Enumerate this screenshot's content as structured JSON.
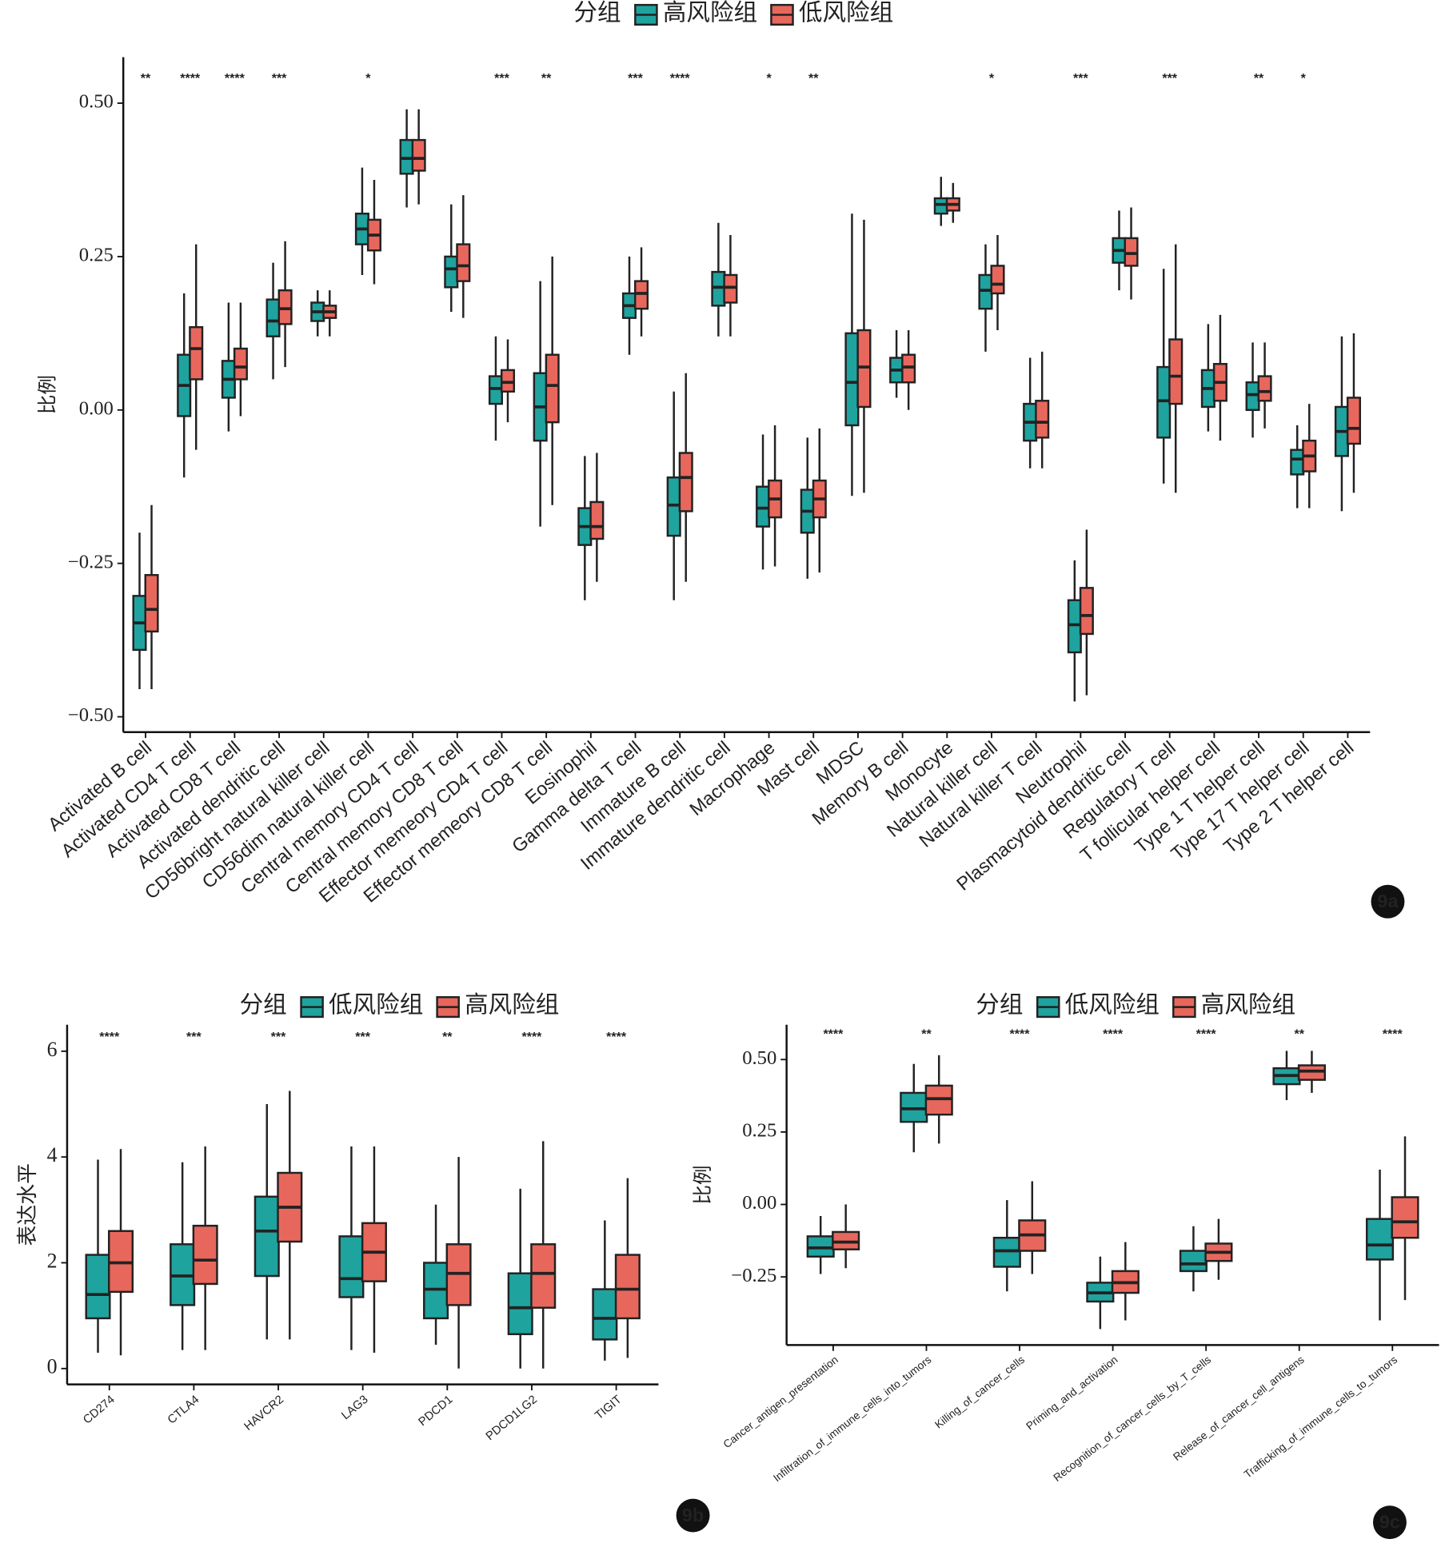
{
  "chart_data": [
    {
      "type": "box",
      "panel_label": "9a",
      "legend_title": "分组",
      "y_label": "比例",
      "ylim": [
        -0.525,
        0.575
      ],
      "yticks": [
        {
          "value": 0.5,
          "label": "0.50"
        },
        0.25,
        {
          "value": 0,
          "label": "0.00"
        },
        {
          "value": -0.25,
          "label": "−0.25"
        },
        {
          "value": -0.5,
          "label": "−0.50"
        }
      ],
      "categories": [
        "Activated B cell",
        "Activated CD4 T cell",
        "Activated CD8 T cell",
        "Activated dendritic cell",
        "CD56bright natural killer cell",
        "CD56dim natural killer cell",
        "Central memory CD4 T cell",
        "Central memory CD8 T cell",
        "Effector memeory CD4 T cell",
        "Effector memeory CD8 T cell",
        "Eosinophil",
        "Gamma delta T cell",
        "Immature  B cell",
        "Immature dendritic cell",
        "Macrophage",
        "Mast cell",
        "MDSC",
        "Memory B cell",
        "Monocyte",
        "Natural killer cell",
        "Natural killer T cell",
        "Neutrophil",
        "Plasmacytoid dendritic cell",
        "Regulatory T cell",
        "T follicular helper cell",
        "Type 1 T helper cell",
        "Type 17 T helper cell",
        "Type 2 T helper cell"
      ],
      "significance": [
        "**",
        "****",
        "****",
        "***",
        null,
        "*",
        null,
        null,
        "***",
        "**",
        null,
        "***",
        "****",
        null,
        "*",
        "**",
        null,
        null,
        null,
        "*",
        null,
        "***",
        null,
        "***",
        null,
        "**",
        "*",
        null
      ],
      "series": [
        {
          "name": "高风险组",
          "color": "#1fa39f",
          "values": [
            [
              -0.455,
              -0.391,
              -0.347,
              -0.303,
              -0.2
            ],
            [
              -0.11,
              -0.01,
              0.04,
              0.09,
              0.19
            ],
            [
              -0.035,
              0.02,
              0.05,
              0.08,
              0.175
            ],
            [
              0.05,
              0.12,
              0.145,
              0.18,
              0.24
            ],
            [
              0.12,
              0.145,
              0.16,
              0.175,
              0.195
            ],
            [
              0.22,
              0.27,
              0.295,
              0.32,
              0.395
            ],
            [
              0.33,
              0.385,
              0.41,
              0.44,
              0.49
            ],
            [
              0.16,
              0.2,
              0.23,
              0.25,
              0.335
            ],
            [
              -0.05,
              0.01,
              0.035,
              0.055,
              0.12
            ],
            [
              -0.19,
              -0.05,
              0.005,
              0.06,
              0.21
            ],
            [
              -0.31,
              -0.22,
              -0.19,
              -0.16,
              -0.075
            ],
            [
              0.09,
              0.15,
              0.17,
              0.19,
              0.25
            ],
            [
              -0.31,
              -0.205,
              -0.155,
              -0.11,
              0.03
            ],
            [
              0.12,
              0.17,
              0.2,
              0.225,
              0.305
            ],
            [
              -0.26,
              -0.19,
              -0.16,
              -0.125,
              -0.04
            ],
            [
              -0.275,
              -0.2,
              -0.165,
              -0.13,
              -0.045
            ],
            [
              -0.14,
              -0.025,
              0.045,
              0.125,
              0.32
            ],
            [
              0.02,
              0.045,
              0.065,
              0.085,
              0.13
            ],
            [
              0.3,
              0.32,
              0.335,
              0.345,
              0.38
            ],
            [
              0.095,
              0.165,
              0.195,
              0.22,
              0.27
            ],
            [
              -0.095,
              -0.05,
              -0.02,
              0.01,
              0.085
            ],
            [
              -0.475,
              -0.395,
              -0.35,
              -0.31,
              -0.245
            ],
            [
              0.195,
              0.24,
              0.26,
              0.28,
              0.325
            ],
            [
              -0.12,
              -0.045,
              0.015,
              0.07,
              0.23
            ],
            [
              -0.035,
              0.005,
              0.035,
              0.065,
              0.14
            ],
            [
              -0.045,
              0.0,
              0.025,
              0.045,
              0.11
            ],
            [
              -0.16,
              -0.105,
              -0.08,
              -0.065,
              -0.025
            ],
            [
              -0.165,
              -0.075,
              -0.035,
              0.005,
              0.12
            ]
          ]
        },
        {
          "name": "低风险组",
          "color": "#e8675c",
          "values": [
            [
              -0.455,
              -0.361,
              -0.325,
              -0.269,
              -0.155
            ],
            [
              -0.065,
              0.05,
              0.1,
              0.135,
              0.27
            ],
            [
              -0.01,
              0.05,
              0.07,
              0.1,
              0.175
            ],
            [
              0.07,
              0.14,
              0.165,
              0.195,
              0.275
            ],
            [
              0.12,
              0.15,
              0.16,
              0.17,
              0.195
            ],
            [
              0.205,
              0.26,
              0.285,
              0.31,
              0.375
            ],
            [
              0.335,
              0.39,
              0.41,
              0.44,
              0.49
            ],
            [
              0.15,
              0.21,
              0.235,
              0.27,
              0.35
            ],
            [
              -0.02,
              0.03,
              0.045,
              0.065,
              0.115
            ],
            [
              -0.155,
              -0.02,
              0.04,
              0.09,
              0.25
            ],
            [
              -0.28,
              -0.21,
              -0.19,
              -0.15,
              -0.07
            ],
            [
              0.12,
              0.165,
              0.19,
              0.21,
              0.265
            ],
            [
              -0.28,
              -0.165,
              -0.11,
              -0.07,
              0.06
            ],
            [
              0.12,
              0.175,
              0.2,
              0.22,
              0.285
            ],
            [
              -0.255,
              -0.175,
              -0.145,
              -0.115,
              -0.025
            ],
            [
              -0.265,
              -0.175,
              -0.145,
              -0.115,
              -0.03
            ],
            [
              -0.135,
              0.005,
              0.07,
              0.13,
              0.31
            ],
            [
              0.0,
              0.045,
              0.07,
              0.09,
              0.13
            ],
            [
              0.305,
              0.325,
              0.335,
              0.345,
              0.37
            ],
            [
              0.13,
              0.19,
              0.205,
              0.235,
              0.285
            ],
            [
              -0.095,
              -0.045,
              -0.02,
              0.015,
              0.095
            ],
            [
              -0.465,
              -0.365,
              -0.335,
              -0.29,
              -0.195
            ],
            [
              0.18,
              0.235,
              0.255,
              0.28,
              0.33
            ],
            [
              -0.135,
              0.01,
              0.055,
              0.115,
              0.27
            ],
            [
              -0.05,
              0.015,
              0.045,
              0.075,
              0.155
            ],
            [
              -0.03,
              0.015,
              0.03,
              0.055,
              0.11
            ],
            [
              -0.16,
              -0.1,
              -0.075,
              -0.05,
              0.01
            ],
            [
              -0.135,
              -0.055,
              -0.03,
              0.02,
              0.125
            ]
          ]
        }
      ]
    },
    {
      "type": "box",
      "panel_label": "9b",
      "legend_title": "分组",
      "y_label": "表达水平",
      "ylim": [
        -0.3,
        6.5
      ],
      "yticks": [
        0,
        2,
        4,
        6
      ],
      "categories": [
        "CD274",
        "CTLA4",
        "HAVCR2",
        "LAG3",
        "PDCD1",
        "PDCD1LG2",
        "TIGIT"
      ],
      "significance": [
        "****",
        "***",
        "***",
        "***",
        "**",
        "****",
        "****"
      ],
      "series": [
        {
          "name": "低风险组",
          "color": "#1fa39f",
          "values": [
            [
              0.3,
              0.95,
              1.4,
              2.15,
              3.95
            ],
            [
              0.35,
              1.2,
              1.75,
              2.35,
              3.9
            ],
            [
              0.55,
              1.75,
              2.6,
              3.25,
              5.0
            ],
            [
              0.35,
              1.35,
              1.7,
              2.5,
              4.2
            ],
            [
              0.45,
              0.95,
              1.5,
              2.0,
              3.1
            ],
            [
              0.0,
              0.65,
              1.15,
              1.8,
              3.4
            ],
            [
              0.15,
              0.55,
              0.95,
              1.5,
              2.8
            ]
          ]
        },
        {
          "name": "高风险组",
          "color": "#e8675c",
          "values": [
            [
              0.25,
              1.45,
              2.0,
              2.6,
              4.15
            ],
            [
              0.35,
              1.6,
              2.05,
              2.7,
              4.2
            ],
            [
              0.55,
              2.4,
              3.05,
              3.7,
              5.25
            ],
            [
              0.3,
              1.65,
              2.2,
              2.75,
              4.2
            ],
            [
              0.0,
              1.2,
              1.8,
              2.35,
              4.0
            ],
            [
              0.0,
              1.15,
              1.8,
              2.35,
              4.3
            ],
            [
              0.2,
              0.95,
              1.5,
              2.15,
              3.6
            ]
          ]
        }
      ]
    },
    {
      "type": "box",
      "panel_label": "9c",
      "legend_title": "分组",
      "y_label": "比例",
      "ylim": [
        -0.485,
        0.62
      ],
      "yticks": [
        {
          "value": 0.5,
          "label": "0.50"
        },
        0.25,
        {
          "value": 0,
          "label": "0.00"
        },
        {
          "value": -0.25,
          "label": "−0.25"
        }
      ],
      "categories": [
        "Cancer_antigen_presentation",
        "Infiltration_of_immune_cells_into_tumors",
        "Killing_of_cancer_cells",
        "Priming_and_activation",
        "Recognition_of_cancer_cells_by_T_cells",
        "Release_of_cancer_cell_antigens",
        "Trafficking_of_immune_cells_to_tumors"
      ],
      "significance": [
        "****",
        "**",
        "****",
        "****",
        "****",
        "**",
        "****"
      ],
      "series": [
        {
          "name": "低风险组",
          "color": "#1fa39f",
          "values": [
            [
              -0.24,
              -0.18,
              -0.15,
              -0.11,
              -0.04
            ],
            [
              0.18,
              0.285,
              0.33,
              0.385,
              0.485
            ],
            [
              -0.3,
              -0.215,
              -0.16,
              -0.115,
              0.015
            ],
            [
              -0.43,
              -0.335,
              -0.305,
              -0.27,
              -0.18
            ],
            [
              -0.3,
              -0.23,
              -0.205,
              -0.16,
              -0.075
            ],
            [
              0.36,
              0.415,
              0.445,
              0.47,
              0.53
            ],
            [
              -0.4,
              -0.19,
              -0.14,
              -0.05,
              0.12
            ]
          ]
        },
        {
          "name": "高风险组",
          "color": "#e8675c",
          "values": [
            [
              -0.22,
              -0.155,
              -0.13,
              -0.095,
              0.0
            ],
            [
              0.21,
              0.31,
              0.365,
              0.41,
              0.515
            ],
            [
              -0.24,
              -0.16,
              -0.105,
              -0.055,
              0.08
            ],
            [
              -0.4,
              -0.305,
              -0.27,
              -0.23,
              -0.13
            ],
            [
              -0.26,
              -0.195,
              -0.165,
              -0.135,
              -0.05
            ],
            [
              0.385,
              0.43,
              0.46,
              0.48,
              0.53
            ],
            [
              -0.33,
              -0.115,
              -0.06,
              0.025,
              0.235
            ]
          ]
        }
      ]
    }
  ]
}
